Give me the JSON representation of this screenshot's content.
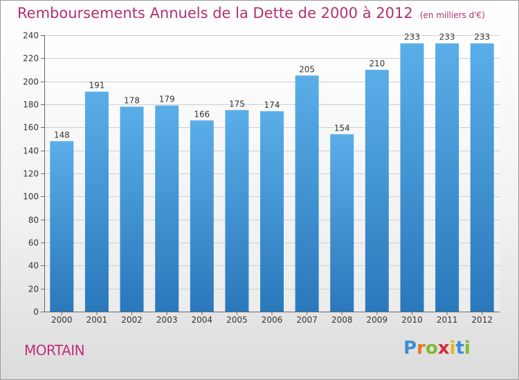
{
  "header": {
    "title": "Remboursements Annuels de la Dette de 2000 à 2012",
    "unit": "(en milliers d'€)"
  },
  "footer": {
    "city": "MORTAIN",
    "logo": [
      "P",
      "r",
      "o",
      "x",
      "i",
      "t",
      "i"
    ]
  },
  "colors": {
    "title": "#b0306e",
    "bar_top": "#5aaee8",
    "bar_bottom": "#2a78bc"
  },
  "chart_data": {
    "type": "bar",
    "title": "Remboursements Annuels de la Dette de 2000 à 2012",
    "subtitle": "(en milliers d'€)",
    "xlabel": "",
    "ylabel": "",
    "categories": [
      "2000",
      "2001",
      "2002",
      "2003",
      "2004",
      "2005",
      "2006",
      "2007",
      "2008",
      "2009",
      "2010",
      "2011",
      "2012"
    ],
    "values": [
      148,
      191,
      178,
      179,
      166,
      175,
      174,
      205,
      154,
      210,
      233,
      233,
      233
    ],
    "ylim": [
      0,
      240
    ],
    "yticks": [
      0,
      20,
      40,
      60,
      80,
      100,
      120,
      140,
      160,
      180,
      200,
      220,
      240
    ],
    "grid": true
  }
}
